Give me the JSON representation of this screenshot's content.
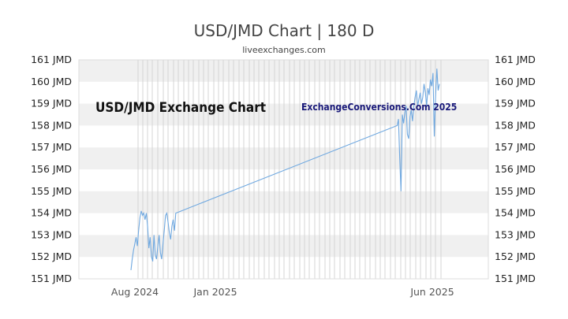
{
  "title": "USD/JMD Chart | 180 D",
  "subtitle": "liveexchanges.com",
  "colors": {
    "line": "#6fa8e0",
    "band": "#f0f0f0",
    "grid": "#cccccc",
    "annotation_main": "#111111",
    "annotation_brand": "#1a1a7a"
  },
  "annotations": {
    "main": "USD/JMD Exchange Chart",
    "brand": "ExchangeConversions.Com 2025"
  },
  "chart_data": {
    "type": "line",
    "ylim": [
      151,
      161
    ],
    "y_ticks": [
      "151 JMD",
      "152 JMD",
      "153 JMD",
      "154 JMD",
      "155 JMD",
      "156 JMD",
      "157 JMD",
      "158 JMD",
      "159 JMD",
      "160 JMD",
      "161 JMD"
    ],
    "y_tick_values": [
      151,
      152,
      153,
      154,
      155,
      156,
      157,
      158,
      159,
      160,
      161
    ],
    "y_axes": [
      "left",
      "right"
    ],
    "alternating_bands": true,
    "x_tick_labels": [
      "Aug 2024",
      "Jan 2025",
      "Jun 2025"
    ],
    "series": [
      {
        "values": [
          [
            0,
            151.4
          ],
          [
            0.5,
            151.9
          ],
          [
            1,
            152.3
          ],
          [
            1.5,
            152.6
          ],
          [
            2,
            152.9
          ],
          [
            2.5,
            152.5
          ],
          [
            3,
            153.2
          ],
          [
            3.5,
            153.8
          ],
          [
            4,
            154.1
          ],
          [
            4.5,
            153.9
          ],
          [
            5,
            154.0
          ],
          [
            5.5,
            153.7
          ],
          [
            6,
            154.0
          ],
          [
            6.5,
            153.4
          ],
          [
            7,
            152.4
          ],
          [
            7.5,
            152.9
          ],
          [
            8,
            152.0
          ],
          [
            8.5,
            151.8
          ],
          [
            9,
            153.0
          ],
          [
            9.5,
            152.1
          ],
          [
            10,
            151.9
          ],
          [
            10.5,
            152.5
          ],
          [
            11,
            153.0
          ],
          [
            11.5,
            152.2
          ],
          [
            12,
            151.9
          ],
          [
            12.5,
            152.6
          ],
          [
            13,
            153.2
          ],
          [
            13.5,
            153.9
          ],
          [
            14,
            154.0
          ],
          [
            14.5,
            153.6
          ],
          [
            15,
            153.1
          ],
          [
            15.5,
            152.8
          ],
          [
            16,
            153.4
          ],
          [
            16.5,
            153.7
          ],
          [
            17,
            153.2
          ],
          [
            17.5,
            154.0
          ],
          [
            104,
            158.0
          ],
          [
            104.5,
            158.3
          ],
          [
            105,
            156.5
          ],
          [
            105.5,
            155.0
          ],
          [
            106,
            158.5
          ],
          [
            106.5,
            158.1
          ],
          [
            107,
            158.6
          ],
          [
            107.5,
            158.9
          ],
          [
            108,
            157.6
          ],
          [
            108.5,
            157.4
          ],
          [
            109,
            158.4
          ],
          [
            109.5,
            158.7
          ],
          [
            110,
            158.2
          ],
          [
            110.5,
            158.9
          ],
          [
            111,
            159.3
          ],
          [
            111.5,
            159.6
          ],
          [
            112,
            158.9
          ],
          [
            112.5,
            159.2
          ],
          [
            113,
            159.5
          ],
          [
            113.5,
            159.0
          ],
          [
            114,
            159.3
          ],
          [
            114.5,
            159.9
          ],
          [
            115,
            159.5
          ],
          [
            115.5,
            158.9
          ],
          [
            116,
            159.7
          ],
          [
            116.5,
            159.4
          ],
          [
            117,
            160.1
          ],
          [
            117.5,
            159.8
          ],
          [
            118,
            160.4
          ],
          [
            118.5,
            157.5
          ],
          [
            119,
            159.3
          ],
          [
            119.5,
            160.6
          ],
          [
            120,
            159.6
          ],
          [
            120.5,
            159.9
          ]
        ]
      }
    ]
  }
}
